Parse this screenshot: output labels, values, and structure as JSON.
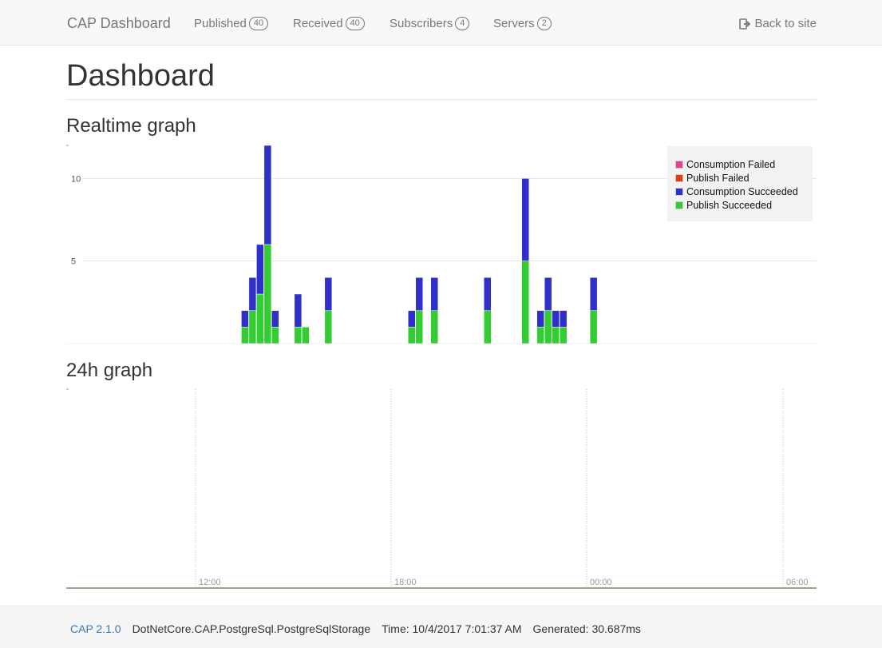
{
  "navbar": {
    "brand": "CAP Dashboard",
    "items": [
      {
        "label": "Published",
        "count": "40"
      },
      {
        "label": "Received",
        "count": "40"
      },
      {
        "label": "Subscribers",
        "count": "4"
      },
      {
        "label": "Servers",
        "count": "2"
      }
    ],
    "back_label": "Back to site"
  },
  "page": {
    "title": "Dashboard"
  },
  "realtime": {
    "title": "Realtime graph",
    "legend": [
      {
        "label": "Consumption Failed",
        "color": "#e83e8c"
      },
      {
        "label": "Publish Failed",
        "color": "#e8380d"
      },
      {
        "label": "Consumption Succeeded",
        "color": "#3030c8"
      },
      {
        "label": "Publish Succeeded",
        "color": "#33cc33"
      }
    ]
  },
  "h24": {
    "title": "24h graph"
  },
  "footer": {
    "version": "CAP 2.1.0",
    "storage": "DotNetCore.CAP.PostgreSql.PostgreSqlStorage",
    "time": "Time: 10/4/2017 7:01:37 AM",
    "generated": "Generated: 30.687ms"
  },
  "chart_data": [
    {
      "type": "bar",
      "stacked": true,
      "title": "Realtime graph",
      "ylim": [
        0,
        12
      ],
      "yticks": [
        5,
        10
      ],
      "y_tick_labels": [
        "5",
        "10"
      ],
      "grid": true,
      "legend_position": "top-right",
      "series": [
        {
          "name": "Publish Succeeded",
          "color": "#33cc33",
          "values": [
            1,
            2,
            3,
            6,
            1,
            1,
            1,
            2,
            1,
            2,
            2,
            2,
            5,
            1,
            2,
            1,
            1,
            2
          ]
        },
        {
          "name": "Consumption Succeeded",
          "color": "#3030c8",
          "values": [
            1,
            2,
            3,
            6,
            1,
            2,
            0,
            2,
            1,
            2,
            2,
            2,
            5,
            1,
            2,
            1,
            1,
            2
          ]
        },
        {
          "name": "Publish Failed",
          "color": "#e8380d",
          "values": [
            0,
            0,
            0,
            0,
            0,
            0,
            0,
            0,
            0,
            0,
            0,
            0,
            0,
            0,
            0,
            0,
            0,
            0
          ]
        },
        {
          "name": "Consumption Failed",
          "color": "#e83e8c",
          "values": [
            0,
            0,
            0,
            0,
            0,
            0,
            0,
            0,
            0,
            0,
            0,
            0,
            0,
            0,
            0,
            0,
            0,
            0
          ]
        }
      ],
      "x_slots": [
        23,
        24,
        25,
        26,
        27,
        30,
        31,
        34,
        45,
        46,
        48,
        55,
        60,
        62,
        63,
        64,
        65,
        69
      ],
      "x_slot_count": 99
    },
    {
      "type": "line",
      "title": "24h graph",
      "x_tick_labels": [
        "12:00",
        "18:00",
        "00:00",
        "06:00"
      ],
      "series": []
    }
  ]
}
